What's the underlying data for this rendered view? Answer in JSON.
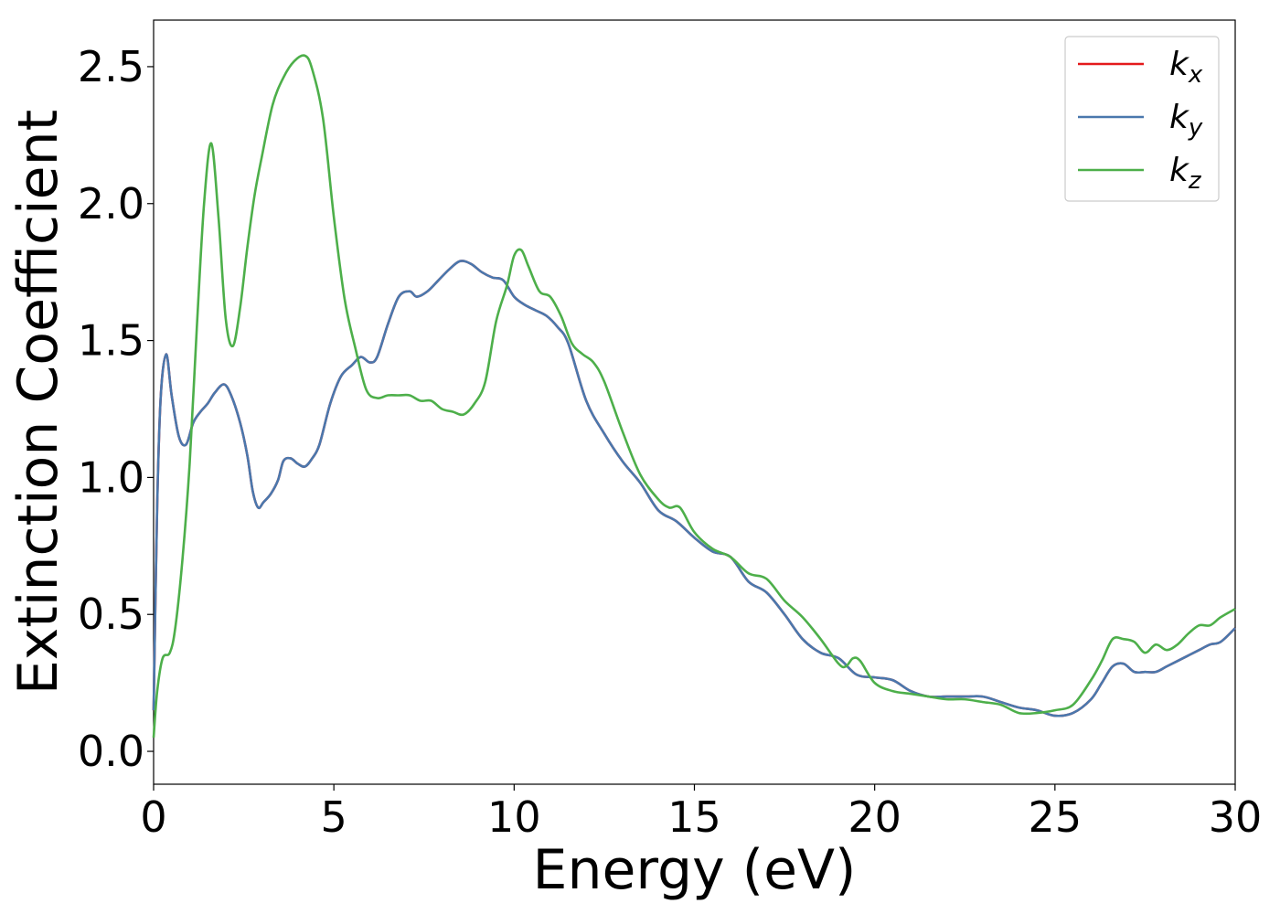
{
  "chart_data": {
    "type": "line",
    "xlabel": "Energy (eV)",
    "ylabel": "Extinction Coefficient",
    "xlim": [
      0,
      30
    ],
    "ylim": [
      -0.12,
      2.67
    ],
    "xticks": [
      0,
      5,
      10,
      15,
      20,
      25,
      30
    ],
    "xtick_labels": [
      "0",
      "5",
      "10",
      "15",
      "20",
      "25",
      "30"
    ],
    "yticks": [
      0.0,
      0.5,
      1.0,
      1.5,
      2.0,
      2.5
    ],
    "ytick_labels": [
      "0.0",
      "0.5",
      "1.0",
      "1.5",
      "2.0",
      "2.5"
    ],
    "grid": false,
    "legend_position": "top-right",
    "series": [
      {
        "name": "k_x",
        "label_base": "k",
        "label_sub": "x",
        "color": "#e41a1c",
        "x": [
          0,
          0.1,
          0.2,
          0.35,
          0.5,
          0.7,
          0.9,
          1.1,
          1.3,
          1.5,
          1.7,
          1.95,
          2.15,
          2.4,
          2.6,
          2.75,
          2.9,
          3.05,
          3.25,
          3.45,
          3.6,
          3.8,
          4.0,
          4.2,
          4.4,
          4.6,
          4.9,
          5.2,
          5.5,
          5.75,
          6.0,
          6.2,
          6.5,
          6.8,
          7.1,
          7.3,
          7.6,
          7.9,
          8.2,
          8.5,
          8.8,
          9.1,
          9.4,
          9.7,
          10.0,
          10.3,
          10.6,
          10.9,
          11.2,
          11.5,
          12.0,
          12.5,
          13.0,
          13.5,
          14.0,
          14.5,
          15.0,
          15.5,
          16.0,
          16.5,
          17.0,
          17.5,
          18.0,
          18.5,
          19.0,
          19.5,
          20.0,
          20.5,
          21.0,
          21.5,
          22.0,
          22.5,
          23.0,
          23.5,
          24.0,
          24.5,
          25.0,
          25.5,
          26.0,
          26.3,
          26.6,
          26.9,
          27.2,
          27.5,
          27.8,
          28.1,
          28.4,
          28.7,
          29.0,
          29.3,
          29.6,
          30.0
        ],
        "values": [
          0.15,
          0.9,
          1.3,
          1.45,
          1.3,
          1.15,
          1.12,
          1.2,
          1.24,
          1.27,
          1.31,
          1.34,
          1.3,
          1.2,
          1.08,
          0.95,
          0.89,
          0.91,
          0.94,
          0.99,
          1.06,
          1.07,
          1.05,
          1.04,
          1.07,
          1.12,
          1.27,
          1.37,
          1.41,
          1.44,
          1.42,
          1.44,
          1.56,
          1.66,
          1.68,
          1.66,
          1.68,
          1.72,
          1.76,
          1.79,
          1.78,
          1.75,
          1.73,
          1.72,
          1.66,
          1.63,
          1.61,
          1.59,
          1.55,
          1.49,
          1.28,
          1.16,
          1.06,
          0.98,
          0.88,
          0.84,
          0.78,
          0.73,
          0.71,
          0.62,
          0.58,
          0.5,
          0.41,
          0.36,
          0.34,
          0.28,
          0.27,
          0.26,
          0.22,
          0.2,
          0.2,
          0.2,
          0.2,
          0.18,
          0.16,
          0.15,
          0.13,
          0.14,
          0.19,
          0.25,
          0.31,
          0.32,
          0.29,
          0.29,
          0.29,
          0.31,
          0.33,
          0.35,
          0.37,
          0.39,
          0.4,
          0.45
        ]
      },
      {
        "name": "k_y",
        "label_base": "k",
        "label_sub": "y",
        "color": "#4a78ad",
        "x": [
          0,
          0.1,
          0.2,
          0.35,
          0.5,
          0.7,
          0.9,
          1.1,
          1.3,
          1.5,
          1.7,
          1.95,
          2.15,
          2.4,
          2.6,
          2.75,
          2.9,
          3.05,
          3.25,
          3.45,
          3.6,
          3.8,
          4.0,
          4.2,
          4.4,
          4.6,
          4.9,
          5.2,
          5.5,
          5.75,
          6.0,
          6.2,
          6.5,
          6.8,
          7.1,
          7.3,
          7.6,
          7.9,
          8.2,
          8.5,
          8.8,
          9.1,
          9.4,
          9.7,
          10.0,
          10.3,
          10.6,
          10.9,
          11.2,
          11.5,
          12.0,
          12.5,
          13.0,
          13.5,
          14.0,
          14.5,
          15.0,
          15.5,
          16.0,
          16.5,
          17.0,
          17.5,
          18.0,
          18.5,
          19.0,
          19.5,
          20.0,
          20.5,
          21.0,
          21.5,
          22.0,
          22.5,
          23.0,
          23.5,
          24.0,
          24.5,
          25.0,
          25.5,
          26.0,
          26.3,
          26.6,
          26.9,
          27.2,
          27.5,
          27.8,
          28.1,
          28.4,
          28.7,
          29.0,
          29.3,
          29.6,
          30.0
        ],
        "values": [
          0.15,
          0.9,
          1.3,
          1.45,
          1.3,
          1.15,
          1.12,
          1.2,
          1.24,
          1.27,
          1.31,
          1.34,
          1.3,
          1.2,
          1.08,
          0.95,
          0.89,
          0.91,
          0.94,
          0.99,
          1.06,
          1.07,
          1.05,
          1.04,
          1.07,
          1.12,
          1.27,
          1.37,
          1.41,
          1.44,
          1.42,
          1.44,
          1.56,
          1.66,
          1.68,
          1.66,
          1.68,
          1.72,
          1.76,
          1.79,
          1.78,
          1.75,
          1.73,
          1.72,
          1.66,
          1.63,
          1.61,
          1.59,
          1.55,
          1.49,
          1.28,
          1.16,
          1.06,
          0.98,
          0.88,
          0.84,
          0.78,
          0.73,
          0.71,
          0.62,
          0.58,
          0.5,
          0.41,
          0.36,
          0.34,
          0.28,
          0.27,
          0.26,
          0.22,
          0.2,
          0.2,
          0.2,
          0.2,
          0.18,
          0.16,
          0.15,
          0.13,
          0.14,
          0.19,
          0.25,
          0.31,
          0.32,
          0.29,
          0.29,
          0.29,
          0.31,
          0.33,
          0.35,
          0.37,
          0.39,
          0.4,
          0.45
        ]
      },
      {
        "name": "k_z",
        "label_base": "k",
        "label_sub": "z",
        "color": "#4daf4a",
        "x": [
          0,
          0.1,
          0.25,
          0.45,
          0.6,
          0.8,
          1.0,
          1.2,
          1.4,
          1.6,
          1.8,
          2.0,
          2.2,
          2.4,
          2.6,
          2.8,
          3.0,
          3.3,
          3.6,
          3.9,
          4.2,
          4.4,
          4.7,
          5.0,
          5.3,
          5.6,
          5.9,
          6.2,
          6.5,
          6.8,
          7.1,
          7.4,
          7.7,
          8.0,
          8.3,
          8.6,
          8.9,
          9.2,
          9.5,
          9.8,
          10.0,
          10.2,
          10.4,
          10.7,
          11.0,
          11.3,
          11.6,
          11.9,
          12.2,
          12.5,
          13.0,
          13.5,
          14.0,
          14.3,
          14.6,
          15.0,
          15.5,
          16.0,
          16.5,
          17.0,
          17.5,
          18.0,
          18.5,
          19.0,
          19.2,
          19.4,
          19.6,
          20.0,
          20.5,
          21.0,
          21.5,
          22.0,
          22.5,
          23.0,
          23.5,
          24.0,
          24.5,
          25.0,
          25.5,
          26.0,
          26.3,
          26.6,
          26.9,
          27.2,
          27.5,
          27.8,
          28.1,
          28.4,
          28.7,
          29.0,
          29.3,
          29.6,
          30.0
        ],
        "values": [
          0.05,
          0.22,
          0.34,
          0.36,
          0.45,
          0.7,
          1.05,
          1.55,
          2.0,
          2.22,
          1.95,
          1.58,
          1.48,
          1.62,
          1.84,
          2.03,
          2.17,
          2.36,
          2.46,
          2.52,
          2.54,
          2.49,
          2.31,
          1.95,
          1.65,
          1.47,
          1.32,
          1.29,
          1.3,
          1.3,
          1.3,
          1.28,
          1.28,
          1.25,
          1.24,
          1.23,
          1.27,
          1.35,
          1.57,
          1.7,
          1.81,
          1.83,
          1.77,
          1.68,
          1.66,
          1.59,
          1.49,
          1.45,
          1.42,
          1.35,
          1.17,
          1.01,
          0.92,
          0.89,
          0.89,
          0.8,
          0.74,
          0.71,
          0.65,
          0.63,
          0.55,
          0.49,
          0.41,
          0.32,
          0.31,
          0.34,
          0.33,
          0.25,
          0.22,
          0.21,
          0.2,
          0.19,
          0.19,
          0.18,
          0.17,
          0.14,
          0.14,
          0.15,
          0.17,
          0.26,
          0.33,
          0.41,
          0.41,
          0.4,
          0.36,
          0.39,
          0.37,
          0.39,
          0.43,
          0.46,
          0.46,
          0.49,
          0.52
        ]
      }
    ]
  }
}
